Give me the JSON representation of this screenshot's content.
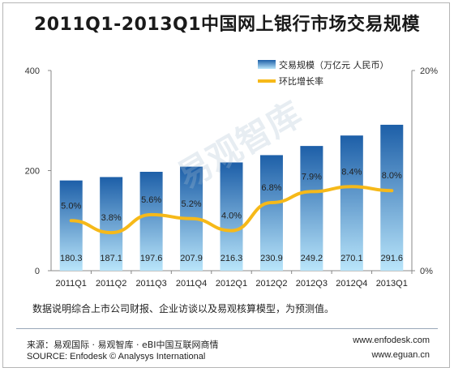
{
  "chart_data": {
    "type": "bar",
    "title": "2011Q1-2013Q1中国网上银行市场交易规模",
    "categories": [
      "2011Q1",
      "2011Q2",
      "2011Q3",
      "2011Q4",
      "2012Q1",
      "2012Q2",
      "2012Q3",
      "2012Q4",
      "2013Q1"
    ],
    "series": [
      {
        "name": "交易规模（万亿元 人民币）",
        "type": "bar",
        "axis": "left",
        "values": [
          180.3,
          187.1,
          197.6,
          207.9,
          216.3,
          230.9,
          249.2,
          270.1,
          291.6
        ],
        "labels": [
          "180.3",
          "187.1",
          "197.6",
          "207.9",
          "216.3",
          "230.9",
          "249.2",
          "270.1",
          "291.6"
        ]
      },
      {
        "name": "环比增长率",
        "type": "line",
        "axis": "right",
        "values": [
          5.0,
          3.8,
          5.6,
          5.2,
          4.0,
          6.8,
          7.9,
          8.4,
          8.0
        ],
        "labels": [
          "5.0%",
          "3.8%",
          "5.6%",
          "5.2%",
          "4.0%",
          "6.8%",
          "7.9%",
          "8.4%",
          "8.0%"
        ]
      }
    ],
    "y_left": {
      "ylim": [
        0,
        400
      ],
      "ticks": [
        "0",
        "200",
        "400"
      ]
    },
    "y_right": {
      "ylim": [
        0,
        20
      ],
      "ticks": [
        "0%",
        "20%"
      ]
    },
    "legend_position": "top-right",
    "grid": false,
    "colors": {
      "bar_top": "#1d5fa8",
      "bar_bottom": "#b9e5fa",
      "line": "#f6b919"
    }
  },
  "note": "数据说明综合上市公司财报、企业访谈以及易观核算模型，为预测值。",
  "source_cn": "来源：易观国际 · 易观智库 · eBI中国互联网商情",
  "source_en": "SOURCE: Enfodesk © Analysys International",
  "site1": "www.enfodesk.com",
  "site2": "www.eguan.cn",
  "watermark": "易观智库"
}
